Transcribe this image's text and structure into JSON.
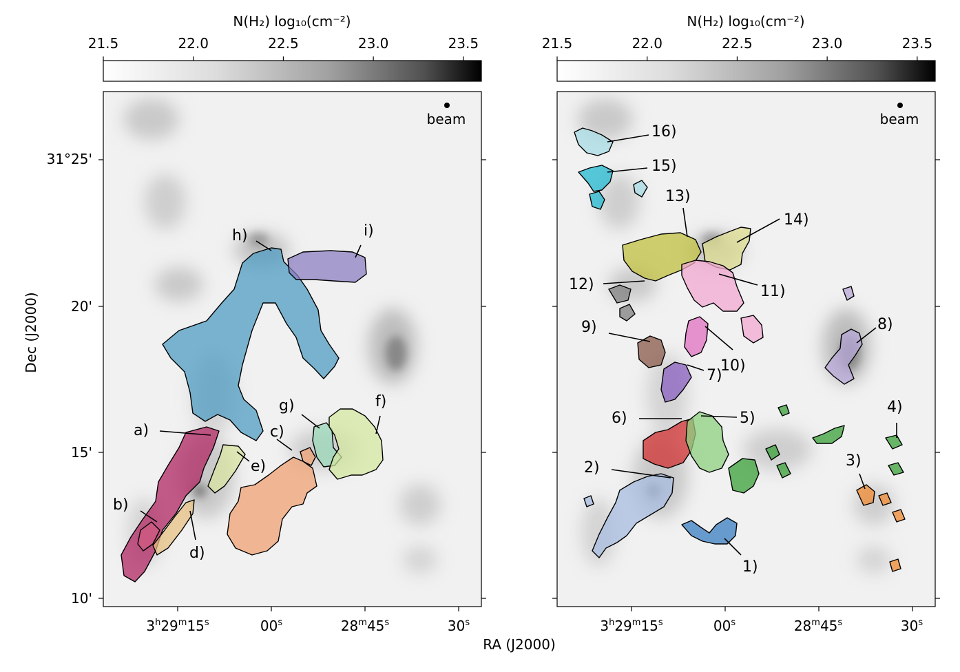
{
  "chart_data": [
    {
      "type": "heatmap",
      "panel": "left",
      "colorbar": {
        "label": "N(H₂) log₁₀(cm⁻²)",
        "range": [
          21.5,
          23.6
        ],
        "ticks": [
          "21.5",
          "22.0",
          "22.5",
          "23.0",
          "23.5"
        ],
        "colormap": "gray_r"
      },
      "beam_label": "beam",
      "ylabel": "Dec (J2000)",
      "yticks": [
        "31°25'",
        "20'",
        "15'",
        "10'"
      ],
      "xticks": [
        "3h29m15s",
        "00s",
        "28m45s",
        "30s"
      ],
      "regions": [
        {
          "label": "a)",
          "color": "#b02060"
        },
        {
          "label": "b)",
          "color": "#d05a80"
        },
        {
          "label": "c)",
          "color": "#f0a070"
        },
        {
          "label": "d)",
          "color": "#e8c080"
        },
        {
          "label": "e)",
          "color": "#d8e4a0"
        },
        {
          "label": "f)",
          "color": "#d4e8a0"
        },
        {
          "label": "g)",
          "color": "#98d8b8"
        },
        {
          "label": "h)",
          "color": "#4a9ac0"
        },
        {
          "label": "i)",
          "color": "#8a7cc0"
        }
      ]
    },
    {
      "type": "heatmap",
      "panel": "right",
      "colorbar": {
        "label": "N(H₂) log₁₀(cm⁻²)",
        "range": [
          21.5,
          23.6
        ],
        "ticks": [
          "21.5",
          "22.0",
          "22.5",
          "23.0",
          "23.5"
        ],
        "colormap": "gray_r"
      },
      "beam_label": "beam",
      "xticks": [
        "3h29m15s",
        "00s",
        "28m45s",
        "30s"
      ],
      "regions": [
        {
          "label": "1)",
          "color": "#3a7ec0"
        },
        {
          "label": "2)",
          "color": "#a8bce0"
        },
        {
          "label": "3)",
          "color": "#f08a30"
        },
        {
          "label": "4)",
          "color": "#3aa03a"
        },
        {
          "label": "5)",
          "color": "#8ed080"
        },
        {
          "label": "6)",
          "color": "#d03030"
        },
        {
          "label": "7)",
          "color": "#8a60c0"
        },
        {
          "label": "8)",
          "color": "#b8a8d8"
        },
        {
          "label": "9)",
          "color": "#8a5a4a"
        },
        {
          "label": "10)",
          "color": "#e070c0"
        },
        {
          "label": "11)",
          "color": "#f0a8d0"
        },
        {
          "label": "12)",
          "color": "#808080"
        },
        {
          "label": "13)",
          "color": "#c0c040"
        },
        {
          "label": "14)",
          "color": "#dcdc90"
        },
        {
          "label": "15)",
          "color": "#20b8d0"
        },
        {
          "label": "16)",
          "color": "#a8dce4"
        }
      ]
    }
  ],
  "xlabel": "RA (J2000)"
}
